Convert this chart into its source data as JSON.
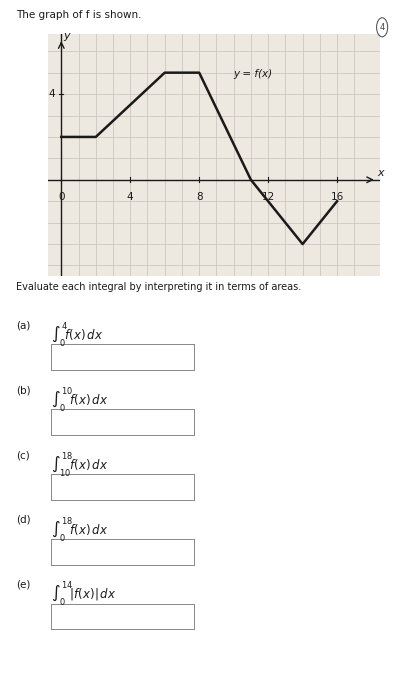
{
  "title": "The graph of f is shown.",
  "func_label": "y = f(x)",
  "x_points": [
    0,
    2,
    6,
    8,
    11,
    14,
    16
  ],
  "y_points": [
    2,
    2,
    5,
    5,
    0,
    -3,
    -1
  ],
  "x_ticks": [
    0,
    4,
    8,
    12,
    16
  ],
  "y_tick_label": "4",
  "y_tick_val": 4,
  "x_axis_label": "x",
  "y_axis_label": "y",
  "xlim": [
    -0.8,
    18.5
  ],
  "ylim": [
    -4.5,
    6.8
  ],
  "graph_bg": "#ede8e0",
  "line_color": "#1a1a1a",
  "grid_color": "#c8c0b8",
  "text_color": "#1a1a1a",
  "instruction": "Evaluate each integral by interpreting it in terms of areas.",
  "fig_width": 3.96,
  "fig_height": 6.82,
  "parts": [
    {
      "label": "(a)",
      "integral_text": "$\\int_0^{4} f(x)\\,dx$"
    },
    {
      "label": "(b)",
      "integral_text": "$\\int_0^{10} f(x)\\,dx$"
    },
    {
      "label": "(c)",
      "integral_text": "$\\int_{10}^{18} f(x)\\,dx$"
    },
    {
      "label": "(d)",
      "integral_text": "$\\int_0^{18} f(x)\\,dx$"
    },
    {
      "label": "(e)",
      "integral_text": "$\\int_0^{14} |f(x)|\\,dx$"
    }
  ]
}
